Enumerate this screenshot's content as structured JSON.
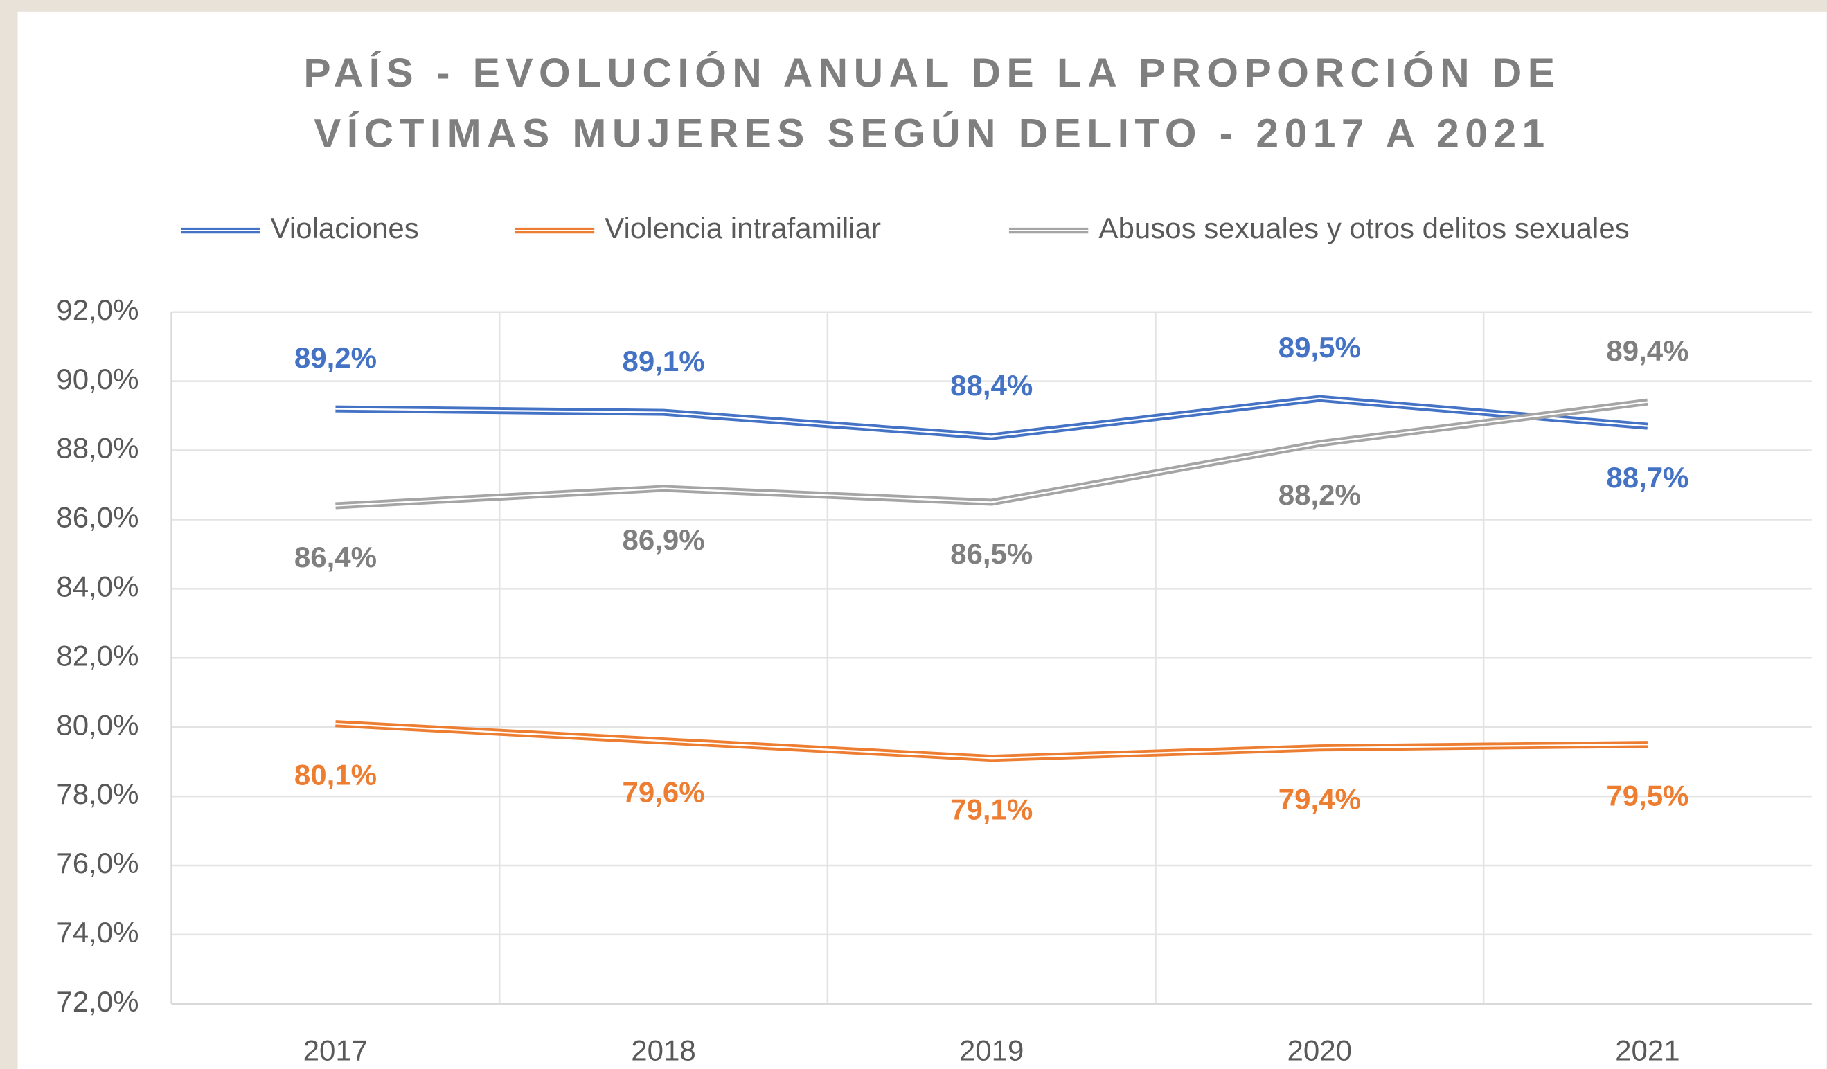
{
  "chart_data": {
    "type": "line",
    "title": [
      "PAÍS - EVOLUCIÓN ANUAL DE LA PROPORCIÓN DE",
      "VÍCTIMAS MUJERES SEGÚN DELITO - 2017 A 2021"
    ],
    "categories": [
      "2017",
      "2018",
      "2019",
      "2020",
      "2021"
    ],
    "series": [
      {
        "name": "Violaciones",
        "color": "#4472c4",
        "values": [
          89.2,
          89.1,
          88.4,
          89.5,
          88.7
        ],
        "value_labels": [
          "89,2%",
          "89,1%",
          "88,4%",
          "89,5%",
          "88,7%"
        ]
      },
      {
        "name": "Violencia intrafamiliar",
        "color": "#ed7d31",
        "values": [
          80.1,
          79.6,
          79.1,
          79.4,
          79.5
        ],
        "value_labels": [
          "80,1%",
          "79,6%",
          "79,1%",
          "79,4%",
          "79,5%"
        ]
      },
      {
        "name": "Abusos sexuales y otros delitos sexuales",
        "color": "#a5a5a5",
        "values": [
          86.4,
          86.9,
          86.5,
          88.2,
          89.4
        ],
        "value_labels": [
          "86,4%",
          "86,9%",
          "86,5%",
          "88,2%",
          "89,4%"
        ]
      }
    ],
    "ylim": [
      72,
      92
    ],
    "yticks": [
      {
        "value": 72,
        "label": "72,0%"
      },
      {
        "value": 74,
        "label": "74,0%"
      },
      {
        "value": 76,
        "label": "76,0%"
      },
      {
        "value": 78,
        "label": "78,0%"
      },
      {
        "value": 80,
        "label": "80,0%"
      },
      {
        "value": 82,
        "label": "82,0%"
      },
      {
        "value": 84,
        "label": "84,0%"
      },
      {
        "value": 86,
        "label": "86,0%"
      },
      {
        "value": 88,
        "label": "88,0%"
      },
      {
        "value": 90,
        "label": "90,0%"
      },
      {
        "value": 92,
        "label": "92,0%"
      }
    ],
    "grid": true,
    "legend": "top"
  }
}
